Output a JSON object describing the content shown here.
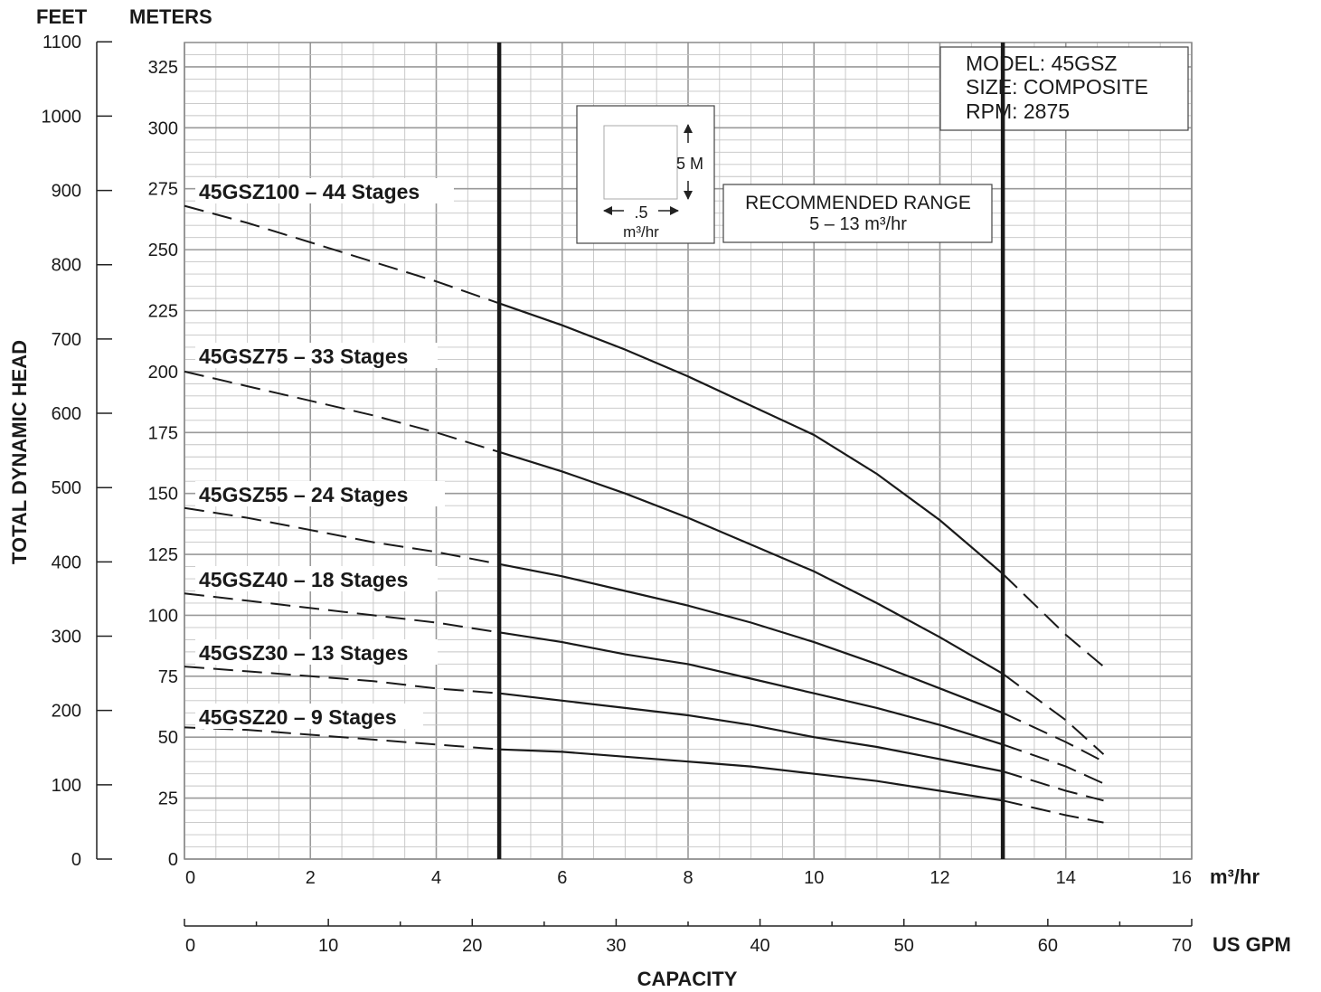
{
  "chart_data": {
    "type": "line",
    "unit_labels": {
      "feet": "FEET",
      "meters": "METERS"
    },
    "ylabel": "TOTAL DYNAMIC HEAD",
    "xlabel": "CAPACITY",
    "x_unit": "m³/hr",
    "x2_unit": "US GPM",
    "xlim": [
      0,
      16
    ],
    "ylim": [
      0,
      335
    ],
    "x2lim": [
      0,
      70
    ],
    "feet_lim": [
      0,
      1100
    ],
    "x_ticks": [
      0,
      2,
      4,
      6,
      8,
      10,
      12,
      14,
      16
    ],
    "x2_ticks": [
      0,
      10,
      20,
      30,
      40,
      50,
      60,
      70
    ],
    "y_ticks": [
      0,
      25,
      50,
      75,
      100,
      125,
      150,
      175,
      200,
      225,
      250,
      275,
      300,
      325
    ],
    "feet_ticks": [
      0,
      100,
      200,
      300,
      400,
      500,
      600,
      700,
      800,
      900,
      1000,
      1100
    ],
    "grid": true,
    "recommended_range_lines": [
      5,
      13
    ],
    "info_box": [
      "MODEL: 45GSZ",
      "SIZE: COMPOSITE",
      "RPM: 2875"
    ],
    "range_box": [
      "RECOMMENDED RANGE",
      "5 – 13 m³/hr"
    ],
    "scale_box": {
      "vertical": "5 M",
      "horizontal": ".5",
      "unit": "m³/hr"
    },
    "series": [
      {
        "name": "45GSZ100 – 44 Stages",
        "x": [
          0,
          1,
          2,
          3,
          4,
          5,
          6,
          7,
          8,
          9,
          10,
          11,
          12,
          13,
          14,
          14.6
        ],
        "y": [
          268,
          261,
          253,
          245,
          237,
          228,
          219,
          209,
          198,
          186,
          174,
          158,
          139,
          117,
          92,
          79
        ]
      },
      {
        "name": "45GSZ75 – 33 Stages",
        "x": [
          0,
          1,
          2,
          3,
          4,
          5,
          6,
          7,
          8,
          9,
          10,
          11,
          12,
          13,
          14,
          14.6
        ],
        "y": [
          200,
          194,
          188,
          182,
          175,
          167,
          159,
          150,
          140,
          129,
          118,
          105,
          91,
          76,
          57,
          43
        ]
      },
      {
        "name": "45GSZ55 – 24  Stages",
        "x": [
          0,
          1,
          2,
          3,
          4,
          5,
          6,
          7,
          8,
          9,
          10,
          11,
          12,
          13,
          14,
          14.6
        ],
        "y": [
          144,
          140,
          135,
          130,
          126,
          121,
          116,
          110,
          104,
          97,
          89,
          80,
          70,
          60,
          48,
          40
        ]
      },
      {
        "name": "45GSZ40 – 18 Stages",
        "x": [
          0,
          1,
          2,
          3,
          4,
          5,
          6,
          7,
          8,
          9,
          10,
          11,
          12,
          13,
          14,
          14.6
        ],
        "y": [
          109,
          106,
          103,
          100,
          97,
          93,
          89,
          84,
          80,
          74,
          68,
          62,
          55,
          47,
          38,
          31
        ]
      },
      {
        "name": "45GSZ30 – 13 Stages",
        "x": [
          0,
          1,
          2,
          3,
          4,
          5,
          6,
          7,
          8,
          9,
          10,
          11,
          12,
          13,
          14,
          14.6
        ],
        "y": [
          79,
          77,
          75,
          73,
          70,
          68,
          65,
          62,
          59,
          55,
          50,
          46,
          41,
          36,
          28,
          24
        ]
      },
      {
        "name": "45GSZ20 – 9 Stages",
        "x": [
          0,
          1,
          2,
          3,
          4,
          5,
          6,
          7,
          8,
          9,
          10,
          11,
          12,
          13,
          14,
          14.6
        ],
        "y": [
          54,
          53,
          51,
          49,
          47,
          45,
          44,
          42,
          40,
          38,
          35,
          32,
          28,
          24,
          18,
          15
        ]
      }
    ]
  }
}
